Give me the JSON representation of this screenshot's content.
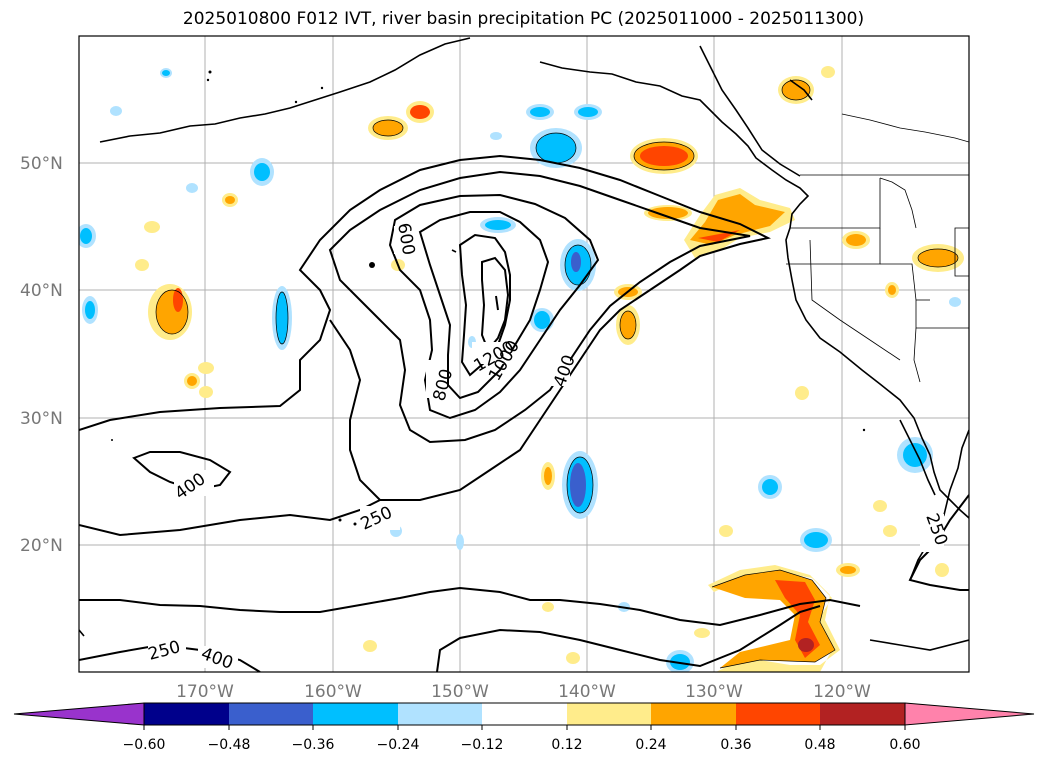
{
  "title": "2025010800 F012 IVT, river basin precipitation PC (2025011000 - 2025011300)",
  "map": {
    "lat_labels": [
      "50°N",
      "40°N",
      "30°N",
      "20°N"
    ],
    "lon_labels": [
      "170°W",
      "160°W",
      "150°W",
      "140°W",
      "130°W",
      "120°W"
    ],
    "contour_labels": [
      "600",
      "1200",
      "1000",
      "800",
      "400",
      "400",
      "250",
      "250",
      "250",
      "400"
    ]
  },
  "colorbar": {
    "ticks": [
      "−0.60",
      "−0.48",
      "−0.36",
      "−0.24",
      "−0.12",
      "0.12",
      "0.24",
      "0.36",
      "0.48",
      "0.60"
    ],
    "colors": [
      "#9933cc",
      "#00008b",
      "#3a5fcd",
      "#00bfff",
      "#b0e2ff",
      "#ffffff",
      "#ffec8b",
      "#ffa500",
      "#ff4500",
      "#b22222",
      "#ff82ab"
    ]
  }
}
